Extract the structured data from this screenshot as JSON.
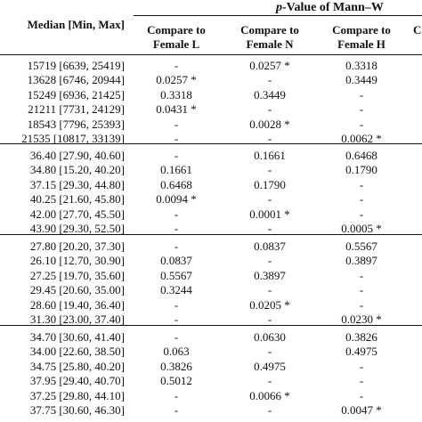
{
  "header": {
    "pvalue_italic": "p",
    "pvalue_rest": "-Value of Mann–W",
    "median": "Median [Min, Max]",
    "cmp_l": [
      "Compare to",
      "Female L"
    ],
    "cmp_n": [
      "Compare to",
      "Female N"
    ],
    "cmp_h": [
      "Compare to",
      "Female H"
    ],
    "cut": "C"
  },
  "groups": [
    {
      "rows": [
        [
          "15719 [6639, 25419]",
          "-",
          "0.0257 *",
          "0.3318"
        ],
        [
          "13628 [6746, 20944]",
          "0.0257 *",
          "-",
          "0.3449"
        ],
        [
          "15249 [6936, 21425]",
          "0.3318",
          "0.3449",
          "-"
        ],
        [
          "21211 [7731, 24129]",
          "0.0431 *",
          "-",
          "-"
        ],
        [
          "18543 [7796, 25393]",
          "-",
          "0.0028 *",
          "-"
        ],
        [
          "21535 [10817, 33139]",
          "-",
          "-",
          "0.0062 *"
        ]
      ]
    },
    {
      "rows": [
        [
          "36.40 [27.90, 40.60]",
          "-",
          "0.1661",
          "0.6468"
        ],
        [
          "34.80 [15.20, 40.20]",
          "0.1661",
          "-",
          "0.1790"
        ],
        [
          "37.15 [29.30, 44.80]",
          "0.6468",
          "0.1790",
          "-"
        ],
        [
          "40.25 [21.60, 45.80]",
          "0.0094 *",
          "-",
          "-"
        ],
        [
          "42.00 [27.70, 45.50]",
          "-",
          "0.0001 *",
          "-"
        ],
        [
          "43.90 [29.30, 52.50]",
          "-",
          "-",
          "0.0005 *"
        ]
      ]
    },
    {
      "rows": [
        [
          "27.80 [20.20, 37.30]",
          "-",
          "0.0837",
          "0.5567"
        ],
        [
          "26.10 [12.70, 30.90]",
          "0.0837",
          "-",
          "0.3897"
        ],
        [
          "27.25 [19.70, 35.60]",
          "0.5567",
          "0.3897",
          "-"
        ],
        [
          "29.45 [20.60, 35.00]",
          "0.3244",
          "-",
          "-"
        ],
        [
          "28.60 [19.40, 36.40]",
          "-",
          "0.0205 *",
          "-"
        ],
        [
          "31.30 [23.00, 37.40]",
          "-",
          "-",
          "0.0230 *"
        ]
      ]
    },
    {
      "rows": [
        [
          "34.70 [30.60, 41.40]",
          "-",
          "0.0630",
          "0.3826"
        ],
        [
          "34.00 [22.60, 38.50]",
          "0.063",
          "-",
          "0.4975"
        ],
        [
          "34.75 [25.80, 40.20]",
          "0.3826",
          "0.4975",
          "-"
        ],
        [
          "37.95 [29.40, 40.70]",
          "0.5012",
          "-",
          "-"
        ],
        [
          "37.25 [29.80, 44.10]",
          "-",
          "0.0066 *",
          "-"
        ],
        [
          "37.75 [30.60, 46.30]",
          "-",
          "-",
          "0.0047 *"
        ]
      ]
    }
  ]
}
